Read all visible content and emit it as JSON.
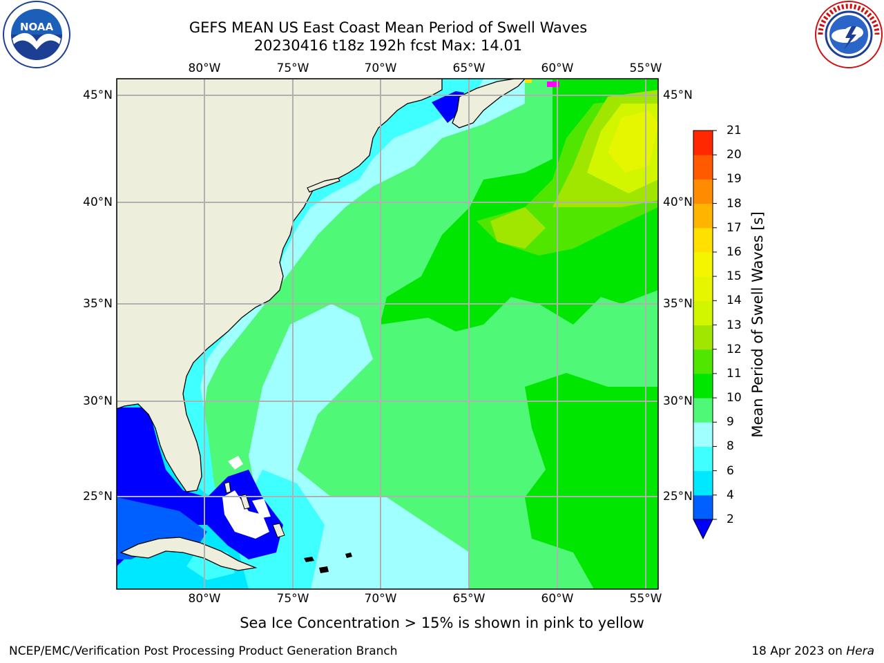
{
  "title_line1": "GEFS MEAN US East Coast Mean Period of Swell Waves",
  "title_line2": "20230416 t18z 192h fcst   Max: 14.01",
  "logos": {
    "left": {
      "name": "noaa-logo",
      "text": "NOAA",
      "ring_text": "NATIONAL OCEANIC AND ATMOSPHERIC ADMINISTRATION · U.S. DEPARTMENT OF COMMERCE"
    },
    "right": {
      "name": "nws-logo",
      "ring_text": "NATIONAL WEATHER SERVICE"
    }
  },
  "map": {
    "lon_labels": [
      "80°W",
      "75°W",
      "70°W",
      "65°W",
      "60°W",
      "55°W"
    ],
    "lat_labels": [
      "45°N",
      "40°N",
      "35°N",
      "30°N",
      "25°N"
    ],
    "lon_range": [
      -85,
      -54
    ],
    "lat_range": [
      20.5,
      45.8
    ],
    "grid": true,
    "land_color": "#eeeedd",
    "no_data_color": "#ffffff"
  },
  "colorbar": {
    "title": "Mean Period of Swell Waves [s]",
    "labels": [
      "2",
      "4",
      "6",
      "8",
      "9",
      "10",
      "11",
      "12",
      "13",
      "14",
      "15",
      "16",
      "17",
      "18",
      "19",
      "20",
      "21"
    ],
    "colors": [
      "#0060ff",
      "#00e8ff",
      "#40ffff",
      "#a0ffff",
      "#50f878",
      "#00e600",
      "#50e600",
      "#a0e600",
      "#d2f500",
      "#e6f500",
      "#f5f500",
      "#ffe000",
      "#ffb400",
      "#ff8c00",
      "#ff5a00",
      "#ff2800"
    ],
    "under_color": "#0000ff",
    "extend": "min"
  },
  "ice_note": "Sea Ice Concentration > 15% is shown in pink to yellow",
  "footer": {
    "left": "NCEP/EMC/Verification Post Processing Product Generation Branch",
    "right_date": "18 Apr 2023 on ",
    "right_machine": "Hera"
  }
}
